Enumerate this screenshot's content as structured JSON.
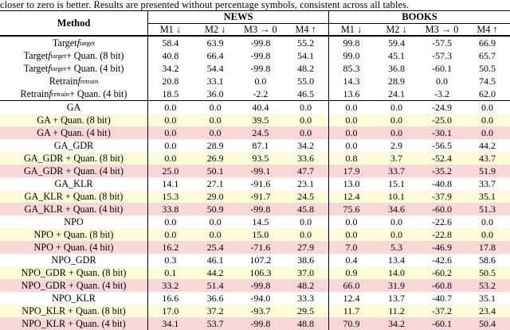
{
  "caption": "closer to zero is better. Results are presented without percentage symbols, consistent across all tables.",
  "row_colors": {
    "white": "#ffffff",
    "yellow": "#fcfcd8",
    "pink": "#f9d6d8"
  },
  "table": {
    "method_header": "Method",
    "group_headers": {
      "news": "NEWS",
      "books": "BOOKS"
    },
    "metrics": [
      "M1 ↓",
      "M2 ↓",
      "M3 → 0",
      "M4 ↑"
    ],
    "baseline_rows": [
      {
        "method": [
          [
            "t",
            "Target "
          ],
          [
            "f",
            "target"
          ]
        ],
        "bg": "white",
        "news": [
          "58.4",
          "63.9",
          "-99.8",
          "55.2"
        ],
        "books": [
          "99.8",
          "59.4",
          "-57.5",
          "66.9"
        ]
      },
      {
        "method": [
          [
            "t",
            "Target "
          ],
          [
            "f",
            "target"
          ],
          [
            "t",
            " + Quan. (8 bit)"
          ]
        ],
        "bg": "white",
        "news": [
          "40.8",
          "66.4",
          "-99.8",
          "54.1"
        ],
        "books": [
          "99.0",
          "45.1",
          "-57.3",
          "65.7"
        ]
      },
      {
        "method": [
          [
            "t",
            "Target "
          ],
          [
            "f",
            "target"
          ],
          [
            "t",
            " + Quan. (4 bit)"
          ]
        ],
        "bg": "white",
        "news": [
          "34.2",
          "54.4",
          "-99.8",
          "48.2"
        ],
        "books": [
          "85.3",
          "36.8",
          "-60.1",
          "50.5"
        ]
      },
      {
        "method": [
          [
            "t",
            "Retrain "
          ],
          [
            "f",
            "retrain"
          ]
        ],
        "bg": "white",
        "news": [
          "20.8",
          "33.1",
          "0.0",
          "55.0"
        ],
        "books": [
          "14.3",
          "28.9",
          "0.0",
          "74.5"
        ]
      },
      {
        "method": [
          [
            "t",
            "Retrain "
          ],
          [
            "f",
            "retrain"
          ],
          [
            "t",
            " + Quan. (4 bit)"
          ]
        ],
        "bg": "white",
        "news": [
          "18.5",
          "36.0",
          "-2.2",
          "46.5"
        ],
        "books": [
          "13.6",
          "24.1",
          "-3.2",
          "62.0"
        ]
      }
    ],
    "unlearning_rows": [
      {
        "method": [
          [
            "t",
            "GA"
          ]
        ],
        "bg": "white",
        "news": [
          "0.0",
          "0.0",
          "40.4",
          "0.0"
        ],
        "books": [
          "0.0",
          "0.0",
          "-24.9",
          "0.0"
        ]
      },
      {
        "method": [
          [
            "t",
            "GA + Quan. (8 bit)"
          ]
        ],
        "bg": "yellow",
        "news": [
          "0.0",
          "0.0",
          "39.5",
          "0.0"
        ],
        "books": [
          "0.0",
          "0.0",
          "-25.0",
          "0.0"
        ]
      },
      {
        "method": [
          [
            "t",
            "GA + Quan. (4 bit)"
          ]
        ],
        "bg": "pink",
        "news": [
          "0.0",
          "0.0",
          "24.5",
          "0.0"
        ],
        "books": [
          "0.0",
          "0.0",
          "-30.1",
          "0.0"
        ]
      },
      {
        "method": [
          [
            "t",
            "GA_GDR"
          ]
        ],
        "bg": "white",
        "news": [
          "0.0",
          "28.9",
          "87.1",
          "34.2"
        ],
        "books": [
          "0.0",
          "2.9",
          "-56.5",
          "44.2"
        ]
      },
      {
        "method": [
          [
            "t",
            "GA_GDR + Quan. (8 bit)"
          ]
        ],
        "bg": "yellow",
        "news": [
          "0.0",
          "26.9",
          "93.5",
          "33.6"
        ],
        "books": [
          "0.8",
          "3.7",
          "-52.4",
          "43.7"
        ]
      },
      {
        "method": [
          [
            "t",
            "GA_GDR + Quan. (4 bit)"
          ]
        ],
        "bg": "pink",
        "news": [
          "25.0",
          "50.1",
          "-99.1",
          "47.7"
        ],
        "books": [
          "17.9",
          "33.7",
          "-35.2",
          "51.9"
        ]
      },
      {
        "method": [
          [
            "t",
            "GA_KLR"
          ]
        ],
        "bg": "white",
        "news": [
          "14.1",
          "27.1",
          "-91.6",
          "23.1"
        ],
        "books": [
          "13.0",
          "15.1",
          "-40.8",
          "33.7"
        ]
      },
      {
        "method": [
          [
            "t",
            "GA_KLR + Quan. (8 bit)"
          ]
        ],
        "bg": "yellow",
        "news": [
          "15.3",
          "29.0",
          "-91.7",
          "24.5"
        ],
        "books": [
          "12.4",
          "10.1",
          "-37.9",
          "35.1"
        ]
      },
      {
        "method": [
          [
            "t",
            "GA_KLR + Quan. (4 bit)"
          ]
        ],
        "bg": "pink",
        "news": [
          "33.8",
          "50.9",
          "-99.8",
          "45.8"
        ],
        "books": [
          "75.6",
          "34.6",
          "-60.0",
          "51.3"
        ]
      },
      {
        "method": [
          [
            "t",
            "NPO"
          ]
        ],
        "bg": "white",
        "news": [
          "0.0",
          "0.0",
          "14.5",
          "0.0"
        ],
        "books": [
          "0.0",
          "0.0",
          "-22.6",
          "0.0"
        ]
      },
      {
        "method": [
          [
            "t",
            "NPO + Quan. (8 bit)"
          ]
        ],
        "bg": "yellow",
        "news": [
          "0.0",
          "0.0",
          "15.0",
          "0.0"
        ],
        "books": [
          "0.0",
          "0.0",
          "-22.8",
          "0.0"
        ]
      },
      {
        "method": [
          [
            "t",
            "NPO + Quan. (4 bit)"
          ]
        ],
        "bg": "pink",
        "news": [
          "16.2",
          "25.4",
          "-71.6",
          "27.9"
        ],
        "books": [
          "7.0",
          "5.3",
          "-46.9",
          "17.8"
        ]
      },
      {
        "method": [
          [
            "t",
            "NPO_GDR"
          ]
        ],
        "bg": "white",
        "news": [
          "0.3",
          "46.1",
          "107.2",
          "38.6"
        ],
        "books": [
          "0.4",
          "13.4",
          "-42.6",
          "58.6"
        ]
      },
      {
        "method": [
          [
            "t",
            "NPO_GDR + Quan. (8 bit)"
          ]
        ],
        "bg": "yellow",
        "news": [
          "0.1",
          "44.2",
          "106.3",
          "37.0"
        ],
        "books": [
          "0.9",
          "14.0",
          "-60.2",
          "50.5"
        ]
      },
      {
        "method": [
          [
            "t",
            "NPO_GDR + Quan. (4 bit)"
          ]
        ],
        "bg": "pink",
        "news": [
          "33.2",
          "51.4",
          "-99.8",
          "48.2"
        ],
        "books": [
          "66.0",
          "31.9",
          "-60.8",
          "53.2"
        ]
      },
      {
        "method": [
          [
            "t",
            "NPO_KLR"
          ]
        ],
        "bg": "white",
        "news": [
          "16.6",
          "36.6",
          "-94.0",
          "33.3"
        ],
        "books": [
          "12.4",
          "13.7",
          "-40.7",
          "35.1"
        ]
      },
      {
        "method": [
          [
            "t",
            "NPO_KLR + Quan. (8 bit)"
          ]
        ],
        "bg": "yellow",
        "news": [
          "17.0",
          "37.2",
          "-93.7",
          "29.5"
        ],
        "books": [
          "11.7",
          "11.2",
          "-37.2",
          "23.4"
        ]
      },
      {
        "method": [
          [
            "t",
            "NPO_KLR + Quan. (4 bit)"
          ]
        ],
        "bg": "pink",
        "news": [
          "34.1",
          "53.7",
          "-99.8",
          "48.8"
        ],
        "books": [
          "70.9",
          "34.2",
          "-60.1",
          "50.4"
        ]
      }
    ]
  }
}
